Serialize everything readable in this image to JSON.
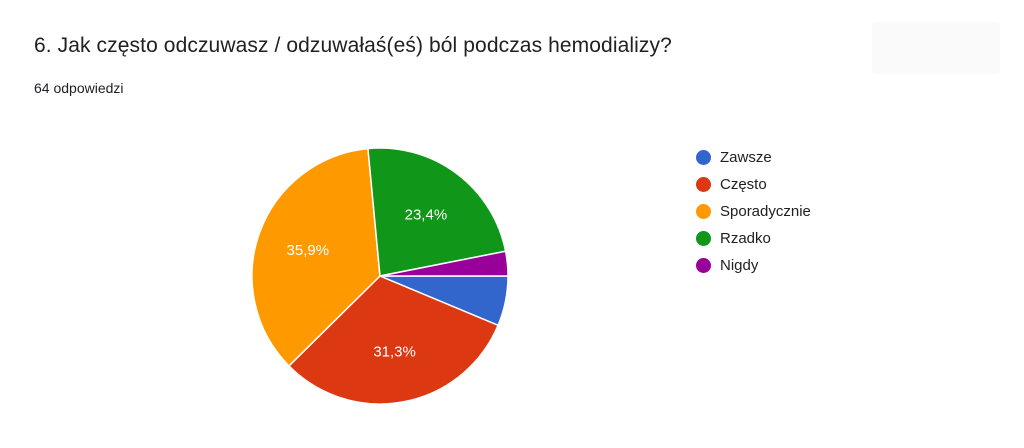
{
  "header": {
    "title": "6. Jak często odczuwasz / odzuwałaś(eś) ból podczas hemodializy?",
    "response_count": "64 odpowiedzi"
  },
  "chart_data": {
    "type": "pie",
    "title": "6. Jak często odczuwasz / odzuwałaś(eś) ból podczas hemodializy?",
    "slices": [
      {
        "label": "Zawsze",
        "value": 6.3,
        "display": "",
        "color": "#3366cc"
      },
      {
        "label": "Często",
        "value": 31.3,
        "display": "31,3%",
        "color": "#dc3912"
      },
      {
        "label": "Sporadycznie",
        "value": 35.9,
        "display": "35,9%",
        "color": "#ff9900"
      },
      {
        "label": "Rzadko",
        "value": 23.4,
        "display": "23,4%",
        "color": "#109618"
      },
      {
        "label": "Nigdy",
        "value": 3.1,
        "display": "",
        "color": "#990099"
      }
    ],
    "legend_position": "right",
    "start_angle": "3 o'clock, clockwise"
  }
}
